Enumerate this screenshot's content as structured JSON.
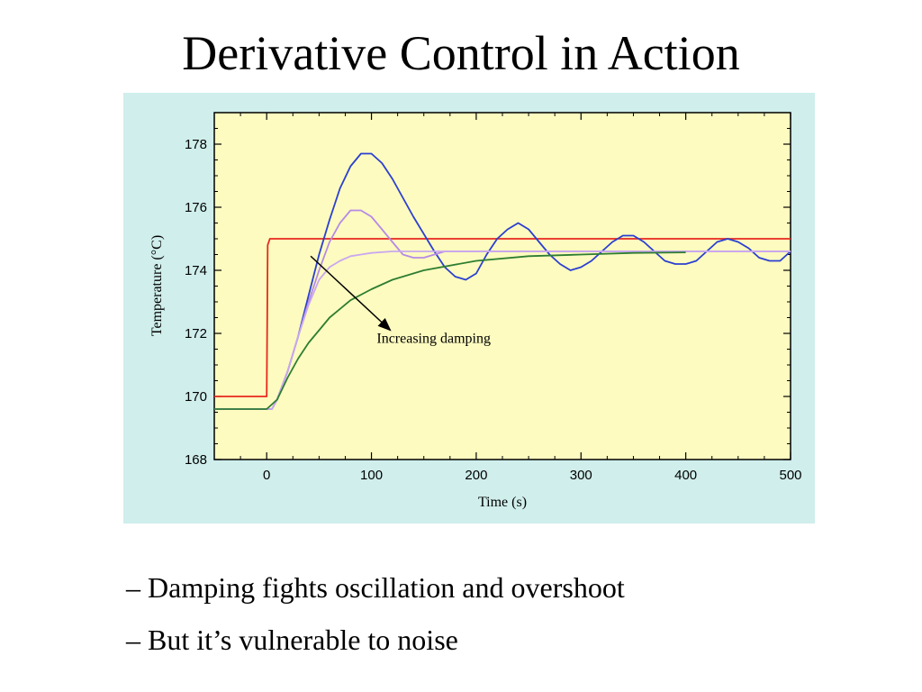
{
  "slide": {
    "title": "Derivative Control in Action",
    "bullets": [
      "– Damping fights oscillation and overshoot",
      "– But it’s vulnerable to noise"
    ]
  },
  "colors": {
    "panel_background": "#cfeeec",
    "plot_background": "#fdfbbf",
    "setpoint": "#e8281e",
    "low_damping": "#2b3fd1",
    "medium_damping": "#b68ae6",
    "high_damping": "#2e7d32"
  },
  "chart_data": {
    "type": "line",
    "title": "",
    "xlabel": "Time (s)",
    "ylabel": "Temperature (°C)",
    "xlim": [
      -50,
      500
    ],
    "ylim": [
      168,
      179
    ],
    "xticks": [
      0,
      100,
      200,
      300,
      400,
      500
    ],
    "yticks": [
      168,
      170,
      172,
      174,
      176,
      178
    ],
    "grid": false,
    "annotation": {
      "text": "Increasing damping",
      "arrow_from": [
        42,
        174.45
      ],
      "arrow_to": [
        118,
        172.1
      ],
      "text_at": [
        105,
        171.7
      ]
    },
    "series": [
      {
        "color": "#e8281e",
        "x": [
          -50,
          -1,
          0,
          0.5,
          1,
          3,
          500
        ],
        "y": [
          170,
          170,
          170,
          172.5,
          174.8,
          175,
          175
        ]
      },
      {
        "color": "#2b3fd1",
        "x": [
          -50,
          0,
          5,
          10,
          20,
          30,
          40,
          50,
          60,
          70,
          80,
          90,
          100,
          110,
          120,
          140,
          160,
          170,
          180,
          190,
          200,
          210,
          220,
          230,
          240,
          250,
          260,
          270,
          280,
          290,
          300,
          310,
          320,
          330,
          340,
          350,
          360,
          370,
          380,
          390,
          400,
          410,
          420,
          430,
          440,
          450,
          460,
          470,
          480,
          490,
          500
        ],
        "y": [
          169.6,
          169.6,
          169.6,
          169.9,
          170.8,
          171.9,
          173.2,
          174.5,
          175.6,
          176.6,
          177.3,
          177.7,
          177.7,
          177.4,
          176.9,
          175.7,
          174.6,
          174.1,
          173.8,
          173.7,
          173.9,
          174.5,
          175.0,
          175.3,
          175.5,
          175.3,
          174.9,
          174.5,
          174.2,
          174.0,
          174.1,
          174.3,
          174.6,
          174.9,
          175.1,
          175.1,
          174.9,
          174.6,
          174.3,
          174.2,
          174.2,
          174.3,
          174.6,
          174.9,
          175.0,
          174.9,
          174.7,
          174.4,
          174.3,
          174.3,
          174.6
        ]
      },
      {
        "color": "#b68ae6",
        "x": [
          -50,
          0,
          5,
          10,
          20,
          30,
          40,
          50,
          60,
          70,
          80,
          90,
          100,
          110,
          120,
          130,
          140,
          150,
          160,
          170,
          180,
          190,
          200,
          250,
          300,
          400,
          500
        ],
        "y": [
          169.6,
          169.6,
          169.6,
          169.9,
          170.8,
          171.9,
          173.0,
          174.0,
          174.9,
          175.5,
          175.9,
          175.9,
          175.7,
          175.3,
          174.9,
          174.5,
          174.4,
          174.4,
          174.5,
          174.6,
          174.6,
          174.6,
          174.6,
          174.6,
          174.6,
          174.6,
          174.6
        ]
      },
      {
        "color": "#c9a8f0",
        "x": [
          -50,
          0,
          5,
          10,
          20,
          30,
          40,
          50,
          60,
          70,
          80,
          90,
          100,
          120,
          150,
          200,
          300,
          400,
          500
        ],
        "y": [
          169.6,
          169.6,
          169.6,
          169.9,
          170.8,
          171.9,
          172.9,
          173.7,
          174.1,
          174.3,
          174.45,
          174.5,
          174.55,
          174.6,
          174.6,
          174.6,
          174.6,
          174.6,
          174.6
        ]
      },
      {
        "color": "#2e7d32",
        "x": [
          -50,
          0,
          10,
          20,
          30,
          40,
          50,
          60,
          80,
          100,
          120,
          150,
          200,
          250,
          300,
          350,
          400
        ],
        "y": [
          169.6,
          169.6,
          169.9,
          170.6,
          171.2,
          171.7,
          172.1,
          172.5,
          173.05,
          173.4,
          173.7,
          174.0,
          174.3,
          174.45,
          174.5,
          174.55,
          174.57
        ]
      }
    ]
  }
}
